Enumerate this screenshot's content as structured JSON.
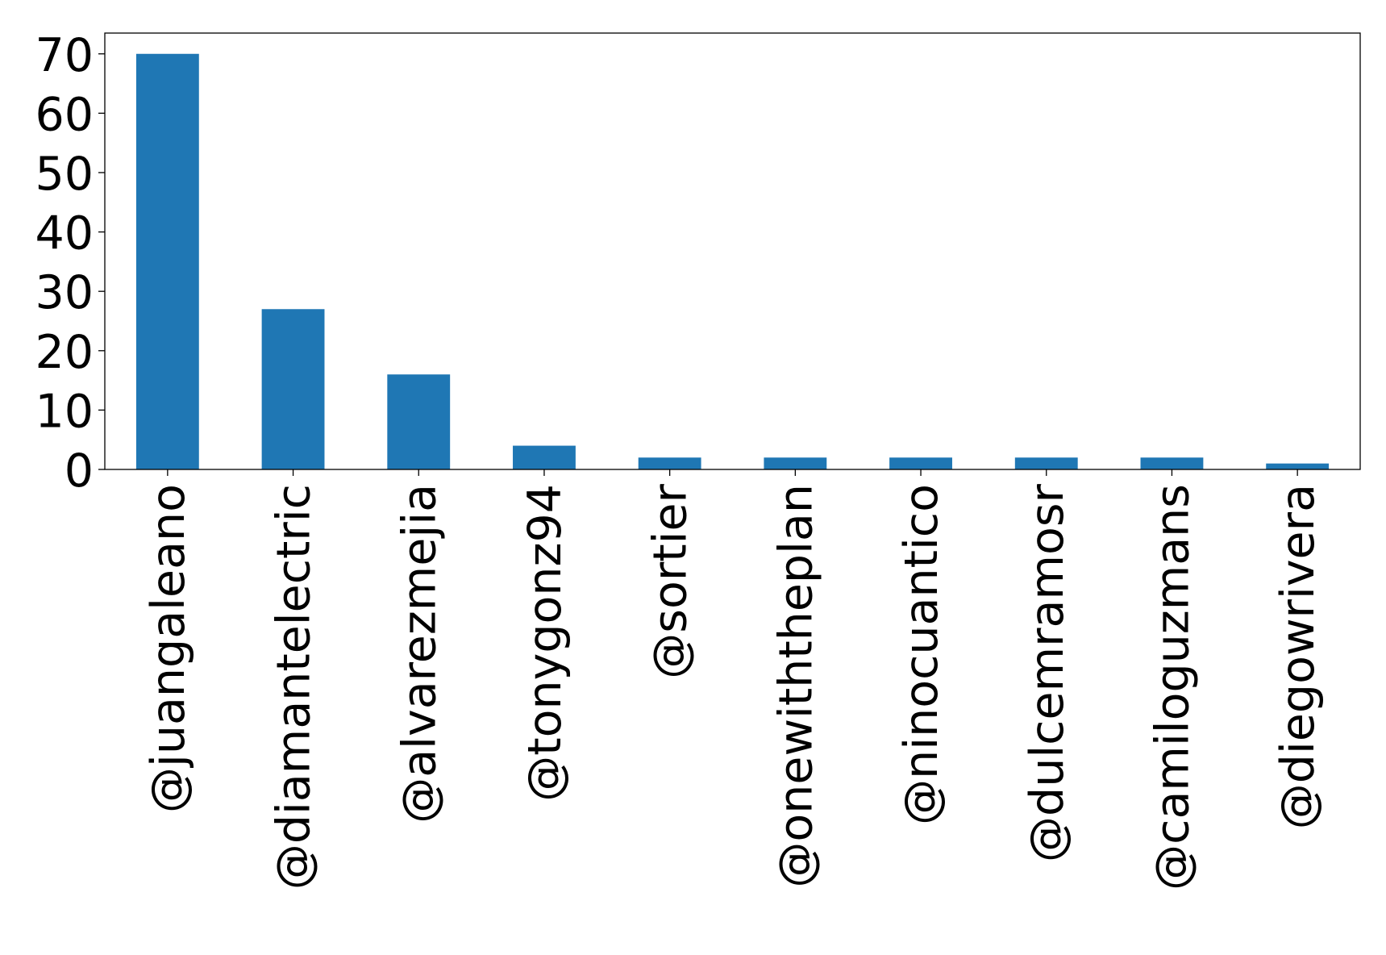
{
  "chart_data": {
    "type": "bar",
    "categories": [
      "@juangaleano",
      "@diamantelectric",
      "@alvarezmejia",
      "@tonygonz94",
      "@sortier",
      "@onewiththeplan",
      "@ninocuantico",
      "@dulcemramosr",
      "@camiloguzmans",
      "@diegowrivera"
    ],
    "values": [
      70,
      27,
      16,
      4,
      2,
      2,
      2,
      2,
      2,
      1
    ],
    "title": "",
    "xlabel": "",
    "ylabel": "",
    "ylim": [
      0,
      73.5
    ],
    "yticks": [
      0,
      10,
      20,
      30,
      40,
      50,
      60,
      70
    ],
    "grid": false,
    "bar_color": "#1f77b4"
  }
}
